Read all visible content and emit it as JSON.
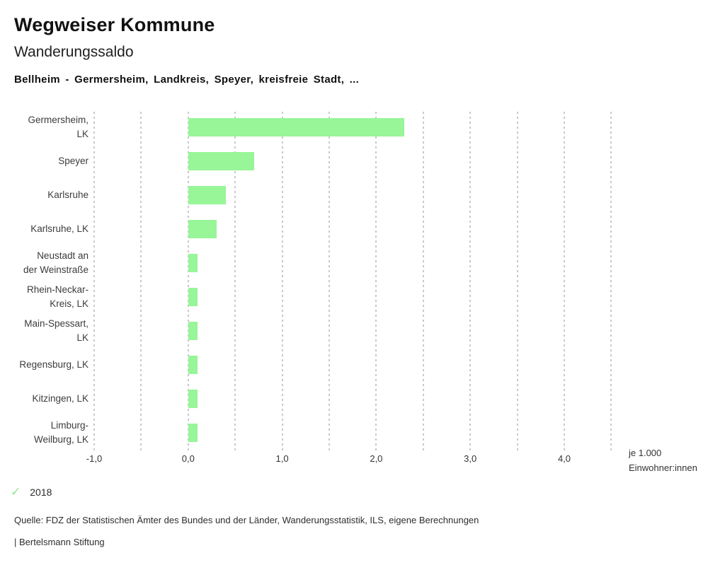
{
  "header": {
    "title": "Wegweiser Kommune",
    "subtitle": "Wanderungssaldo",
    "caption": "Bellheim - Germersheim, Landkreis, Speyer, kreisfreie Stadt, ..."
  },
  "chart_data": {
    "type": "bar",
    "orientation": "horizontal",
    "title": "Wanderungssaldo",
    "categories": [
      "Germersheim,\nLK",
      "Speyer",
      "Karlsruhe",
      "Karlsruhe, LK",
      "Neustadt an\nder Weinstraße",
      "Rhein-Neckar-\nKreis, LK",
      "Main-Spessart,\nLK",
      "Regensburg, LK",
      "Kitzingen, LK",
      "Limburg-\nWeilburg, LK"
    ],
    "values": [
      2.3,
      0.7,
      0.4,
      0.3,
      0.1,
      0.1,
      0.1,
      0.1,
      0.1,
      0.1
    ],
    "xlabel": "je 1.000 Einwohner:innen",
    "xlim": [
      -1.0,
      4.5
    ],
    "x_ticks": [
      -1.0,
      0.0,
      1.0,
      2.0,
      3.0,
      4.0
    ],
    "x_tick_labels": [
      "-1,0",
      "0,0",
      "1,0",
      "2,0",
      "3,0",
      "4,0"
    ],
    "gridline_step": 0.5,
    "grid": "vertical-dashed",
    "legend_position": "bottom-left",
    "bar_color": "#98f598",
    "gridline_color": "#c9c9c9"
  },
  "axis_unit": {
    "line1": "je 1.000",
    "line2": "Einwohner:innen"
  },
  "legend": {
    "check_icon": "✓",
    "check_color": "#8fe88f",
    "year": "2018"
  },
  "footer": {
    "source": "Quelle: FDZ der Statistischen Ämter des Bundes und der Länder, Wanderungsstatistik, ILS, eigene Berechnungen",
    "attribution": "| Bertelsmann Stiftung"
  }
}
